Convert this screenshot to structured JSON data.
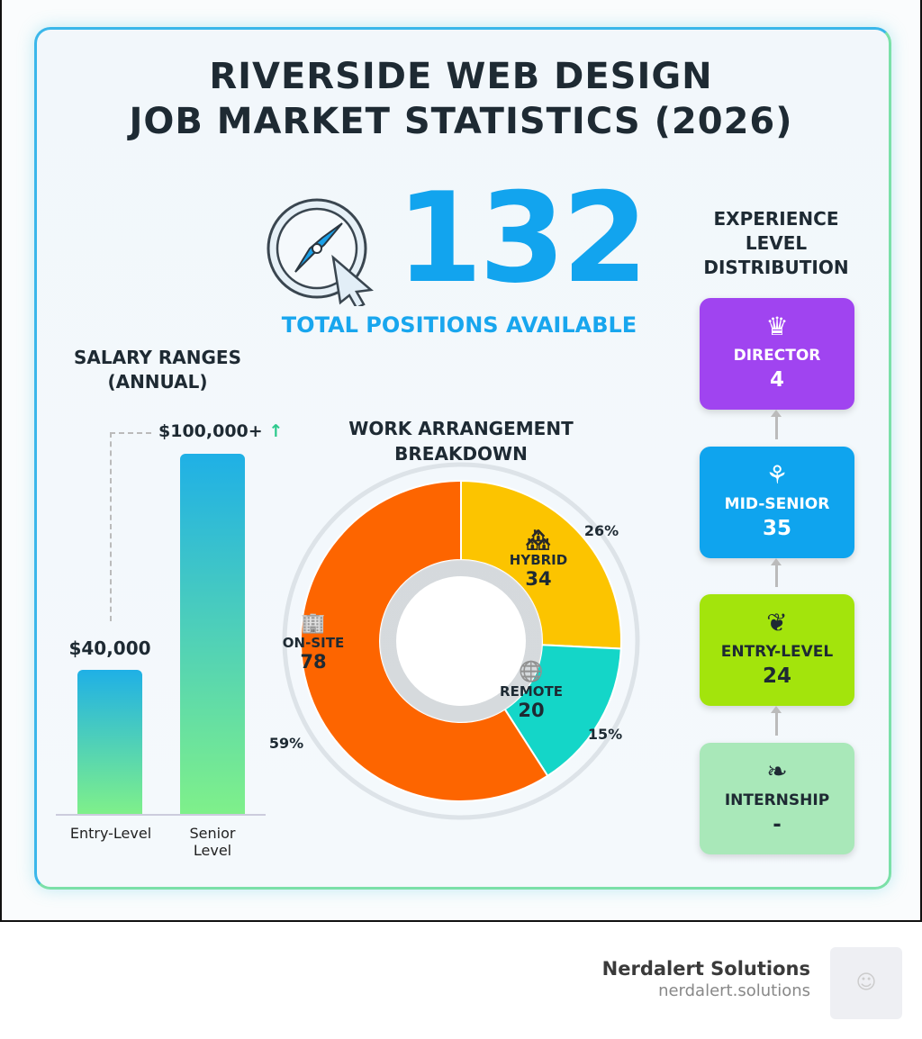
{
  "title_line1": "RIVERSIDE WEB DESIGN",
  "title_line2": "JOB MARKET STATISTICS (2026)",
  "total": {
    "value": "132",
    "label": "TOTAL POSITIONS AVAILABLE",
    "icon": "compass-cursor-icon"
  },
  "footer": {
    "company": "Nerdalert Solutions",
    "url": "nerdalert.solutions"
  },
  "chart_data": [
    {
      "type": "bar",
      "title": "SALARY RANGES (ANNUAL)",
      "categories": [
        "Entry-Level",
        "Senior Level"
      ],
      "values": [
        40000,
        100000
      ],
      "data_labels": [
        "$40,000",
        "$100,000+"
      ],
      "colors": [
        "#1fb0e6",
        "#7ff08a"
      ]
    },
    {
      "type": "pie",
      "title": "WORK ARRANGEMENT BREAKDOWN",
      "donut": true,
      "slices": [
        {
          "label": "HYBRID",
          "value": 34,
          "percent": "26%",
          "color": "#fcc400",
          "icon": "building-house-icon"
        },
        {
          "label": "REMOTE",
          "value": 20,
          "percent": "15%",
          "color": "#14d6c8",
          "icon": "globe-wifi-icon"
        },
        {
          "label": "ON-SITE",
          "value": 78,
          "percent": "59%",
          "color": "#fd6500",
          "icon": "office-building-icon"
        }
      ]
    },
    {
      "type": "table",
      "title": "EXPERIENCE LEVEL DISTRIBUTION",
      "levels": [
        {
          "label": "DIRECTOR",
          "value": "4",
          "color": "#a044f0",
          "icon": "crown-icon"
        },
        {
          "label": "MID-SENIOR",
          "value": "35",
          "color": "#0fa4ee",
          "icon": "tree-icon"
        },
        {
          "label": "ENTRY-LEVEL",
          "value": "24",
          "color": "#a3e40c",
          "icon": "sprout-icon"
        },
        {
          "label": "INTERNSHIP",
          "value": "-",
          "color": "#a9e8b9",
          "icon": "leaf-icon"
        }
      ]
    }
  ]
}
